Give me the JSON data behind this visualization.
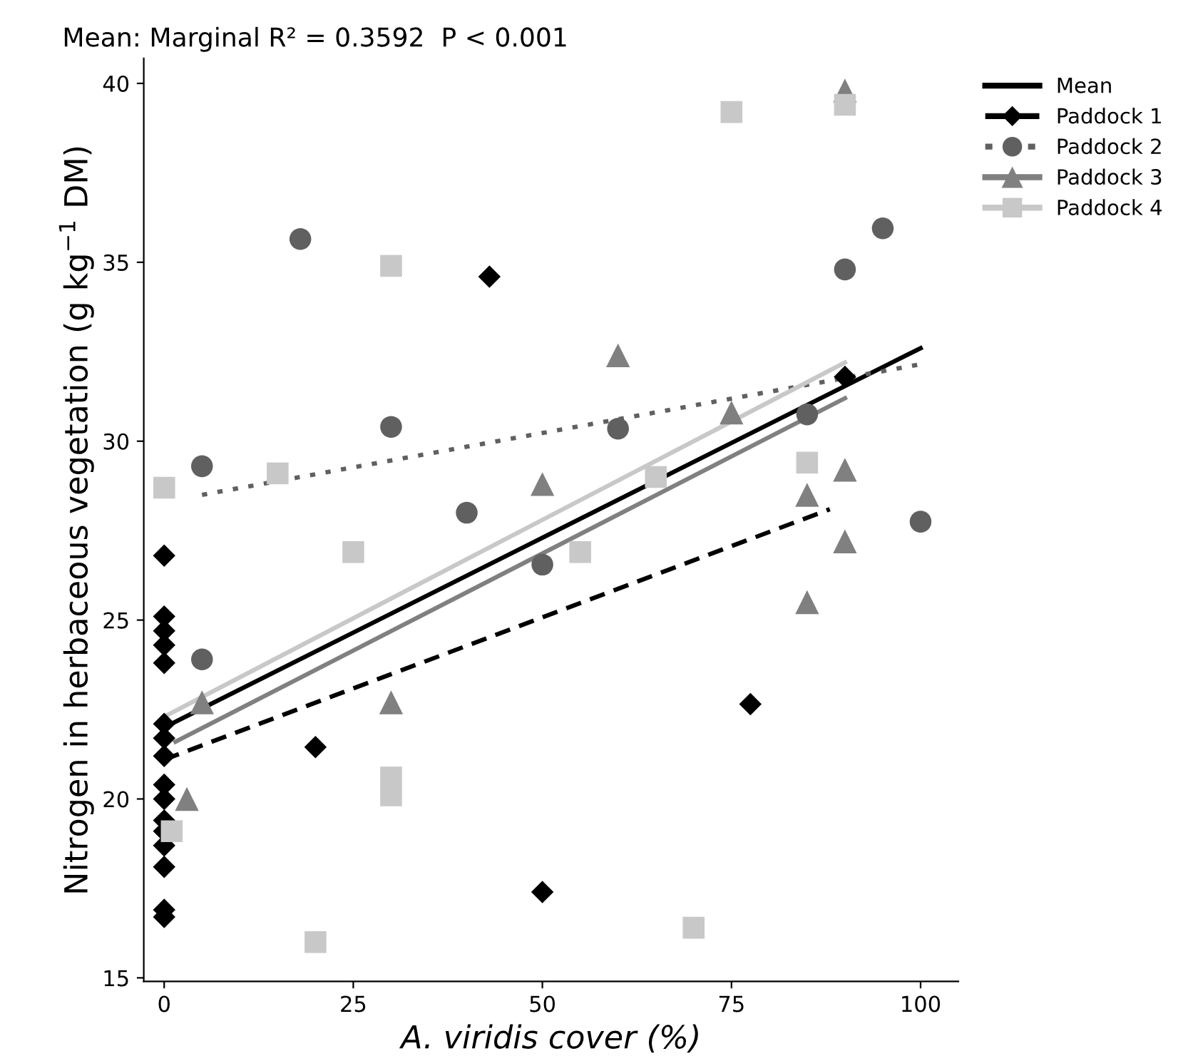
{
  "chart_data": {
    "type": "scatter",
    "title": "Mean: Marginal R² = 0.3592  P < 0.001",
    "xlabel": "A. viridis cover (%)",
    "ylabel": "Nitrogen in herbaceous vegetation (g kg$^{−1}$ DM)",
    "xlim": [
      -2.7,
      105
    ],
    "ylim": [
      14.9,
      40.7
    ],
    "xticks": [
      0,
      25,
      50,
      75,
      100
    ],
    "yticks": [
      15,
      20,
      25,
      30,
      35,
      40
    ],
    "grid": false,
    "legend": "right",
    "series": [
      {
        "type": "line",
        "name": "Mean",
        "color": "#000000",
        "line_style": "solid",
        "marker": "none",
        "x": [
          0,
          100
        ],
        "values": [
          22.0,
          32.6
        ]
      },
      {
        "name": "Paddock 1",
        "color": "#000000",
        "marker": "diamond",
        "line_style": "dashed",
        "x": [
          0,
          0,
          0,
          0,
          0,
          0,
          0,
          0,
          0,
          0,
          0,
          0,
          0,
          0,
          0,
          0,
          20,
          43,
          50,
          77.5,
          90
        ],
        "values": [
          26.8,
          25.1,
          24.7,
          24.3,
          23.8,
          22.1,
          21.7,
          21.2,
          20.4,
          20.0,
          19.4,
          19.1,
          18.7,
          18.1,
          16.9,
          16.7,
          21.45,
          34.6,
          17.4,
          22.65,
          31.8
        ]
      },
      {
        "name": "Paddock 2",
        "color": "#606060",
        "marker": "circle",
        "line_style": "dotted",
        "x": [
          5,
          5,
          18,
          30,
          40,
          50,
          60,
          85,
          90,
          95,
          100
        ],
        "values": [
          29.3,
          23.9,
          35.65,
          30.4,
          28.0,
          26.55,
          30.35,
          30.75,
          34.8,
          35.95,
          27.75
        ]
      },
      {
        "name": "Paddock 3",
        "color": "#808080",
        "marker": "triangle",
        "line_style": "solid",
        "x": [
          3,
          5,
          30,
          50,
          60,
          75,
          85,
          85,
          90,
          90,
          90
        ],
        "values": [
          20.0,
          22.7,
          22.7,
          28.8,
          32.4,
          30.8,
          28.5,
          25.5,
          29.2,
          27.2,
          39.8
        ]
      },
      {
        "name": "Paddock 4",
        "color": "#c8c8c8",
        "marker": "square",
        "line_style": "solid",
        "x": [
          0,
          1,
          15,
          20,
          25,
          30,
          30,
          30,
          55,
          65,
          70,
          75,
          85,
          90
        ],
        "values": [
          28.7,
          19.1,
          29.1,
          16.0,
          26.9,
          34.9,
          20.6,
          20.1,
          26.9,
          29.0,
          16.4,
          39.2,
          29.4,
          39.4
        ]
      },
      {
        "type": "line",
        "color": "#000000",
        "line_style": "dashed",
        "marker": "none",
        "x": [
          0,
          88
        ],
        "values": [
          21.1,
          28.1
        ]
      },
      {
        "type": "line",
        "color": "#606060",
        "line_style": "dotted",
        "marker": "none",
        "x": [
          5,
          100
        ],
        "values": [
          28.5,
          32.15
        ]
      },
      {
        "type": "line",
        "color": "#808080",
        "line_style": "solid",
        "marker": "none",
        "x": [
          1.5,
          90
        ],
        "values": [
          21.6,
          31.2
        ]
      },
      {
        "type": "line",
        "color": "#c8c8c8",
        "line_style": "solid",
        "marker": "none",
        "x": [
          0,
          90
        ],
        "values": [
          22.3,
          32.2
        ]
      }
    ]
  }
}
